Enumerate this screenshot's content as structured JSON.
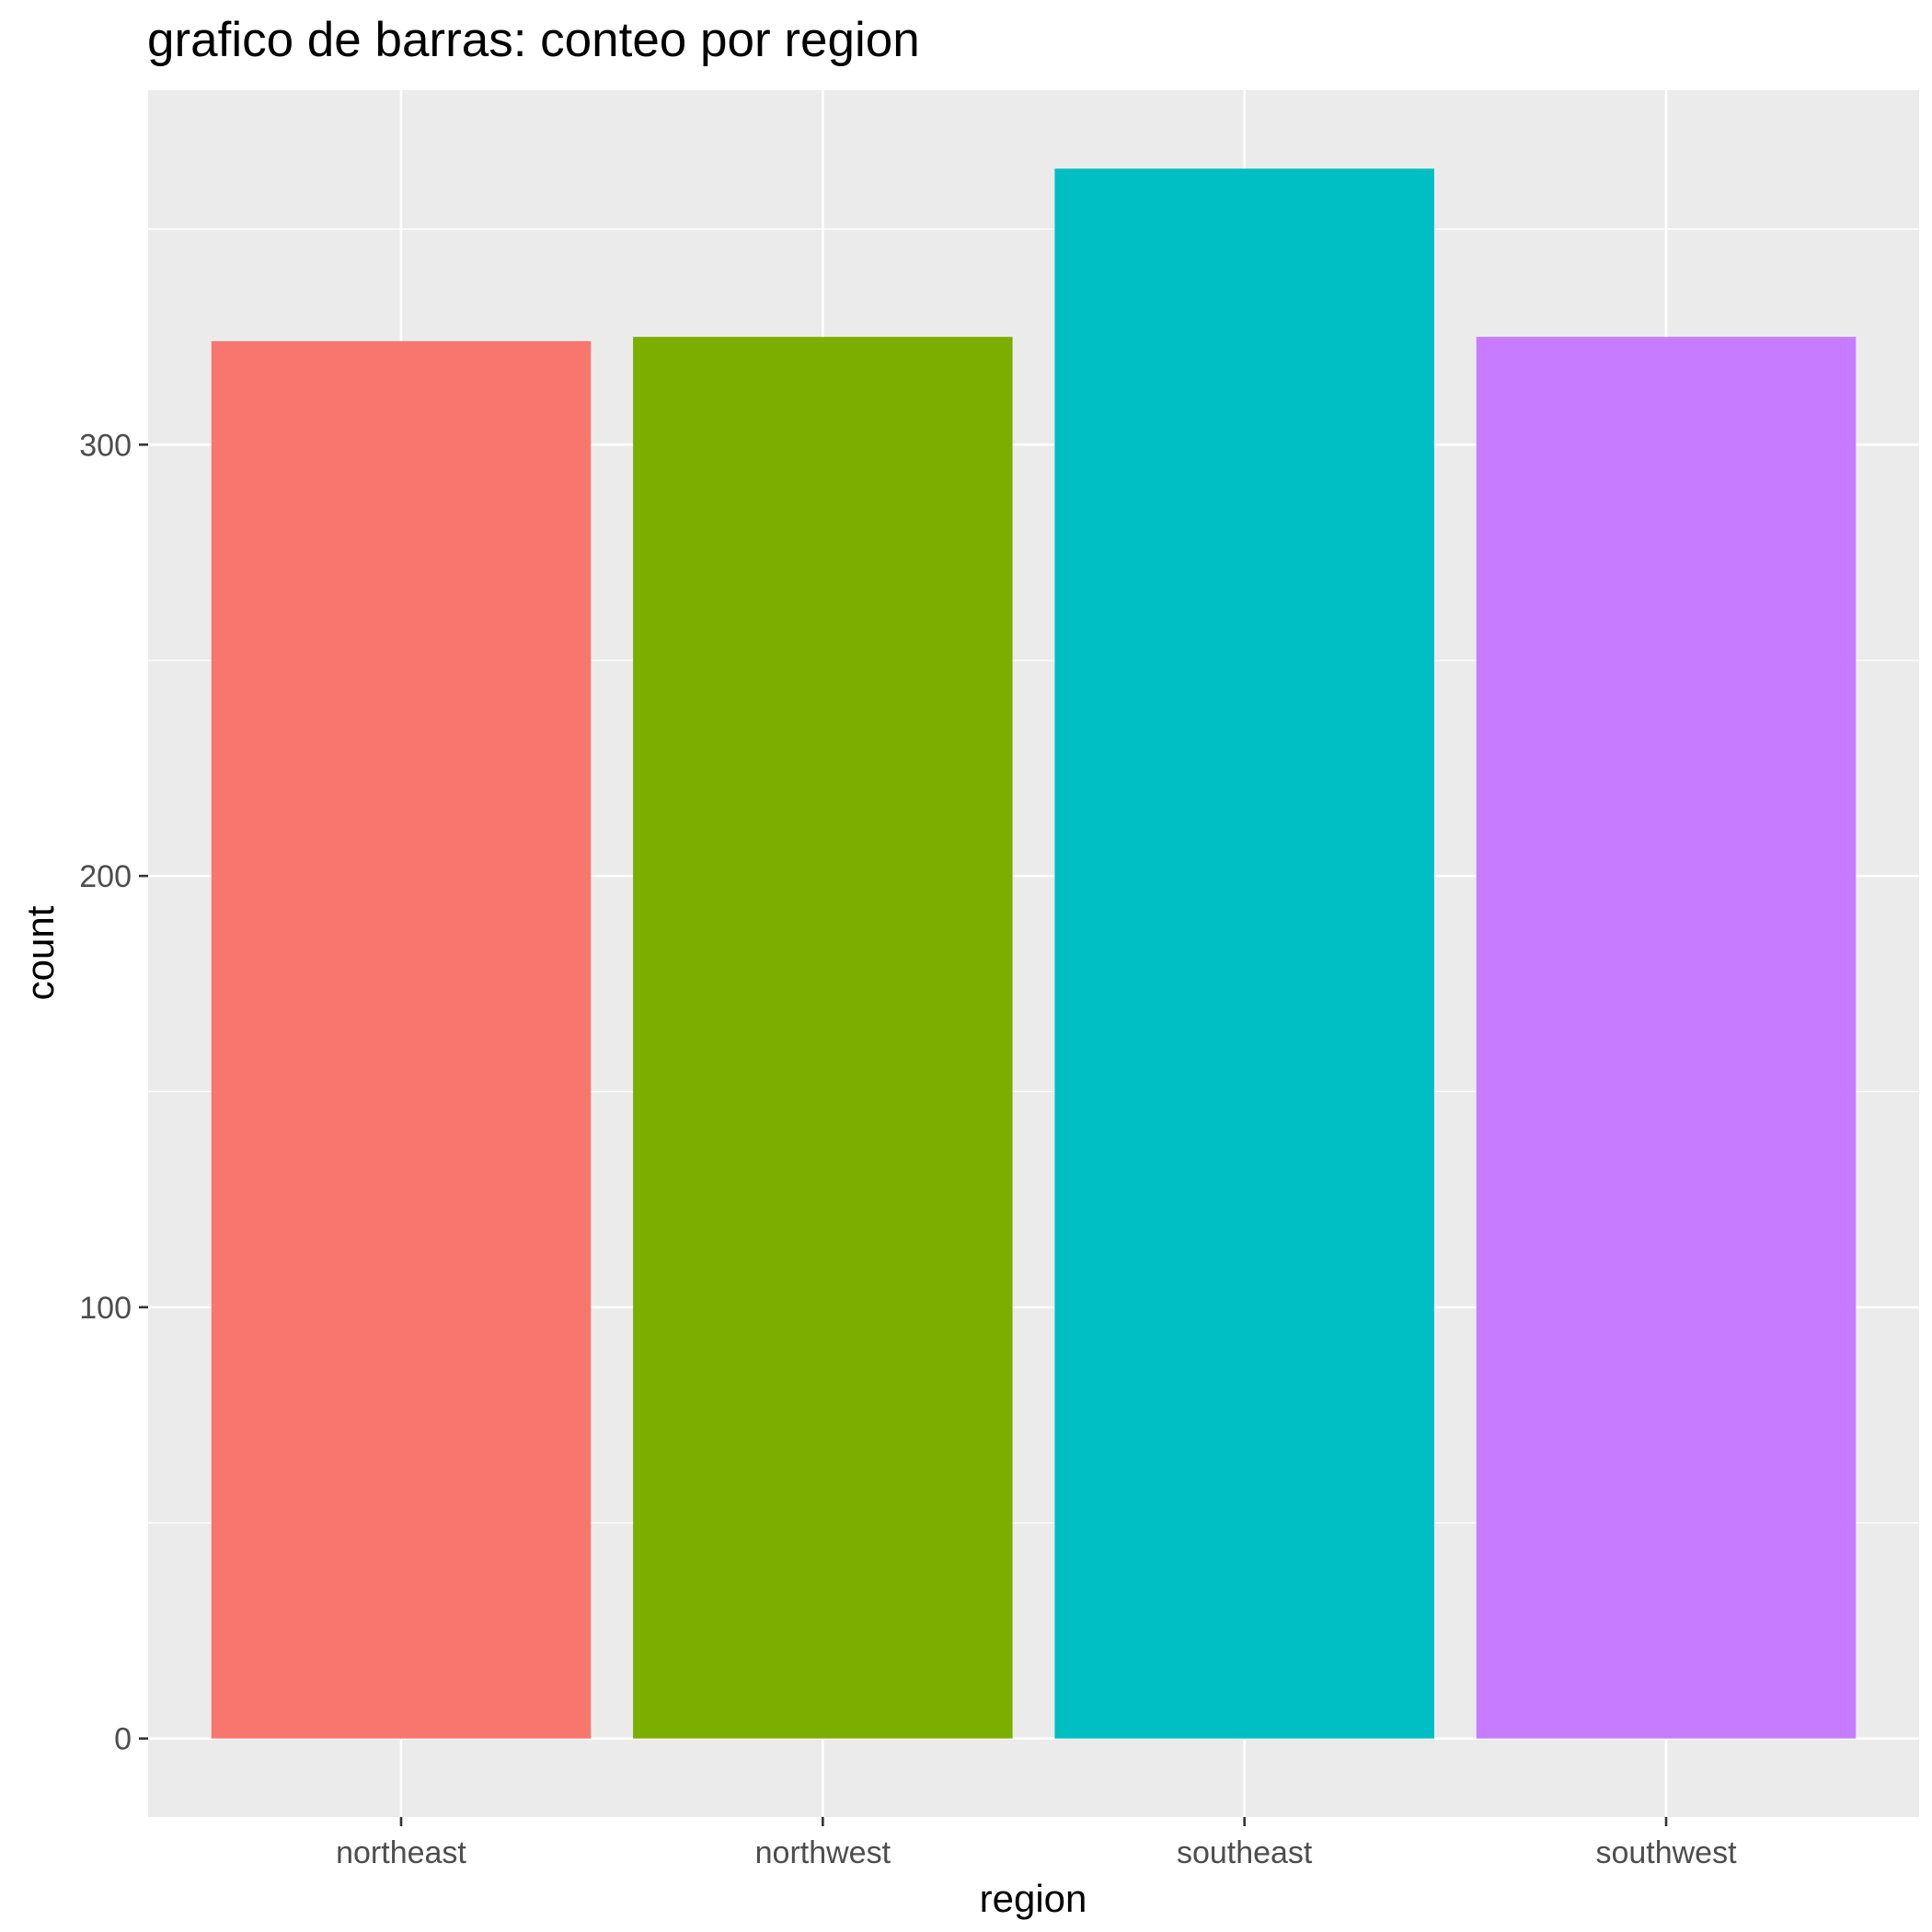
{
  "chart_data": {
    "type": "bar",
    "title": "grafico de barras: conteo por region",
    "xlabel": "region",
    "ylabel": "count",
    "categories": [
      "northeast",
      "northwest",
      "southeast",
      "southwest"
    ],
    "values": [
      324,
      325,
      364,
      325
    ],
    "colors": [
      "#F8766D",
      "#7CAE00",
      "#00BFC4",
      "#C77CFF"
    ],
    "ylim": [
      -18.2,
      382.2
    ],
    "yticks": [
      0,
      100,
      200,
      300
    ],
    "yticks_minor": [
      50,
      150,
      250,
      350
    ],
    "ytick_labels": [
      "0",
      "100",
      "200",
      "300"
    ],
    "grid": true,
    "legend": "none",
    "panel_background": "#EBEBEB",
    "grid_color": "#FFFFFF"
  }
}
